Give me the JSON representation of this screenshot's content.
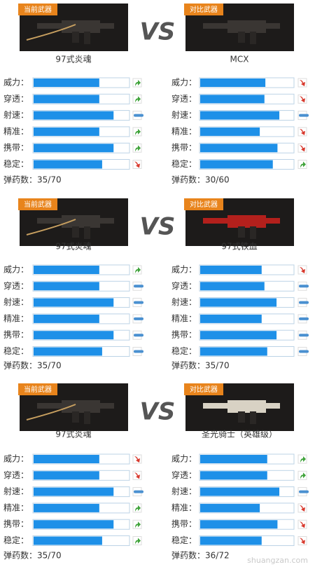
{
  "blocks": [
    {
      "vs": "VS",
      "left": {
        "badge": "当前武器",
        "name": "97式炎魂",
        "ammo": "弹药数：35/70",
        "stats": [
          {
            "label": "威力：",
            "value": 69,
            "trend": "up"
          },
          {
            "label": "穿透：",
            "value": 69,
            "trend": "up"
          },
          {
            "label": "射速：",
            "value": 84,
            "trend": "same"
          },
          {
            "label": "精准：",
            "value": 69,
            "trend": "up"
          },
          {
            "label": "携带：",
            "value": 84,
            "trend": "up"
          },
          {
            "label": "稳定：",
            "value": 72,
            "trend": "down"
          }
        ]
      },
      "right": {
        "badge": "对比武器",
        "name": "MCX",
        "ammo": "弹药数：30/60",
        "stats": [
          {
            "label": "威力：",
            "value": 70,
            "trend": "down"
          },
          {
            "label": "穿透：",
            "value": 69,
            "trend": "down"
          },
          {
            "label": "射速：",
            "value": 85,
            "trend": "same"
          },
          {
            "label": "精准：",
            "value": 64,
            "trend": "down"
          },
          {
            "label": "携带：",
            "value": 83,
            "trend": "down"
          },
          {
            "label": "稳定：",
            "value": 78,
            "trend": "up"
          }
        ]
      }
    },
    {
      "vs": "VS",
      "left": {
        "badge": "当前武器",
        "name": "97式炎魂",
        "ammo": "弹药数：35/70",
        "stats": [
          {
            "label": "威力：",
            "value": 69,
            "trend": "up"
          },
          {
            "label": "穿透：",
            "value": 69,
            "trend": "same"
          },
          {
            "label": "射速：",
            "value": 84,
            "trend": "same"
          },
          {
            "label": "精准：",
            "value": 69,
            "trend": "same"
          },
          {
            "label": "携带：",
            "value": 84,
            "trend": "same"
          },
          {
            "label": "稳定：",
            "value": 72,
            "trend": "same"
          }
        ]
      },
      "right": {
        "badge": "对比武器",
        "name": "97式铁血",
        "ammo": "弹药数：35/70",
        "stats": [
          {
            "label": "威力：",
            "value": 66,
            "trend": "down"
          },
          {
            "label": "穿透：",
            "value": 69,
            "trend": "same"
          },
          {
            "label": "射速：",
            "value": 82,
            "trend": "same"
          },
          {
            "label": "精准：",
            "value": 66,
            "trend": "same"
          },
          {
            "label": "携带：",
            "value": 82,
            "trend": "same"
          },
          {
            "label": "稳定：",
            "value": 72,
            "trend": "same"
          }
        ]
      }
    },
    {
      "vs": "VS",
      "left": {
        "badge": "当前武器",
        "name": "97式炎魂",
        "ammo": "弹药数：35/70",
        "stats": [
          {
            "label": "威力：",
            "value": 69,
            "trend": "down"
          },
          {
            "label": "穿透：",
            "value": 69,
            "trend": "down"
          },
          {
            "label": "射速：",
            "value": 84,
            "trend": "same"
          },
          {
            "label": "精准：",
            "value": 69,
            "trend": "up"
          },
          {
            "label": "携带：",
            "value": 84,
            "trend": "up"
          },
          {
            "label": "稳定：",
            "value": 72,
            "trend": "up"
          }
        ]
      },
      "right": {
        "badge": "对比武器",
        "name": "圣光骑士（英雄级）",
        "ammo": "弹药数：36/72",
        "stats": [
          {
            "label": "威力：",
            "value": 72,
            "trend": "up"
          },
          {
            "label": "穿透：",
            "value": 72,
            "trend": "up"
          },
          {
            "label": "射速：",
            "value": 85,
            "trend": "same"
          },
          {
            "label": "精准：",
            "value": 64,
            "trend": "down"
          },
          {
            "label": "携带：",
            "value": 83,
            "trend": "down"
          },
          {
            "label": "稳定：",
            "value": 66,
            "trend": "down"
          }
        ]
      }
    }
  ],
  "watermark": "shuangzan.com"
}
